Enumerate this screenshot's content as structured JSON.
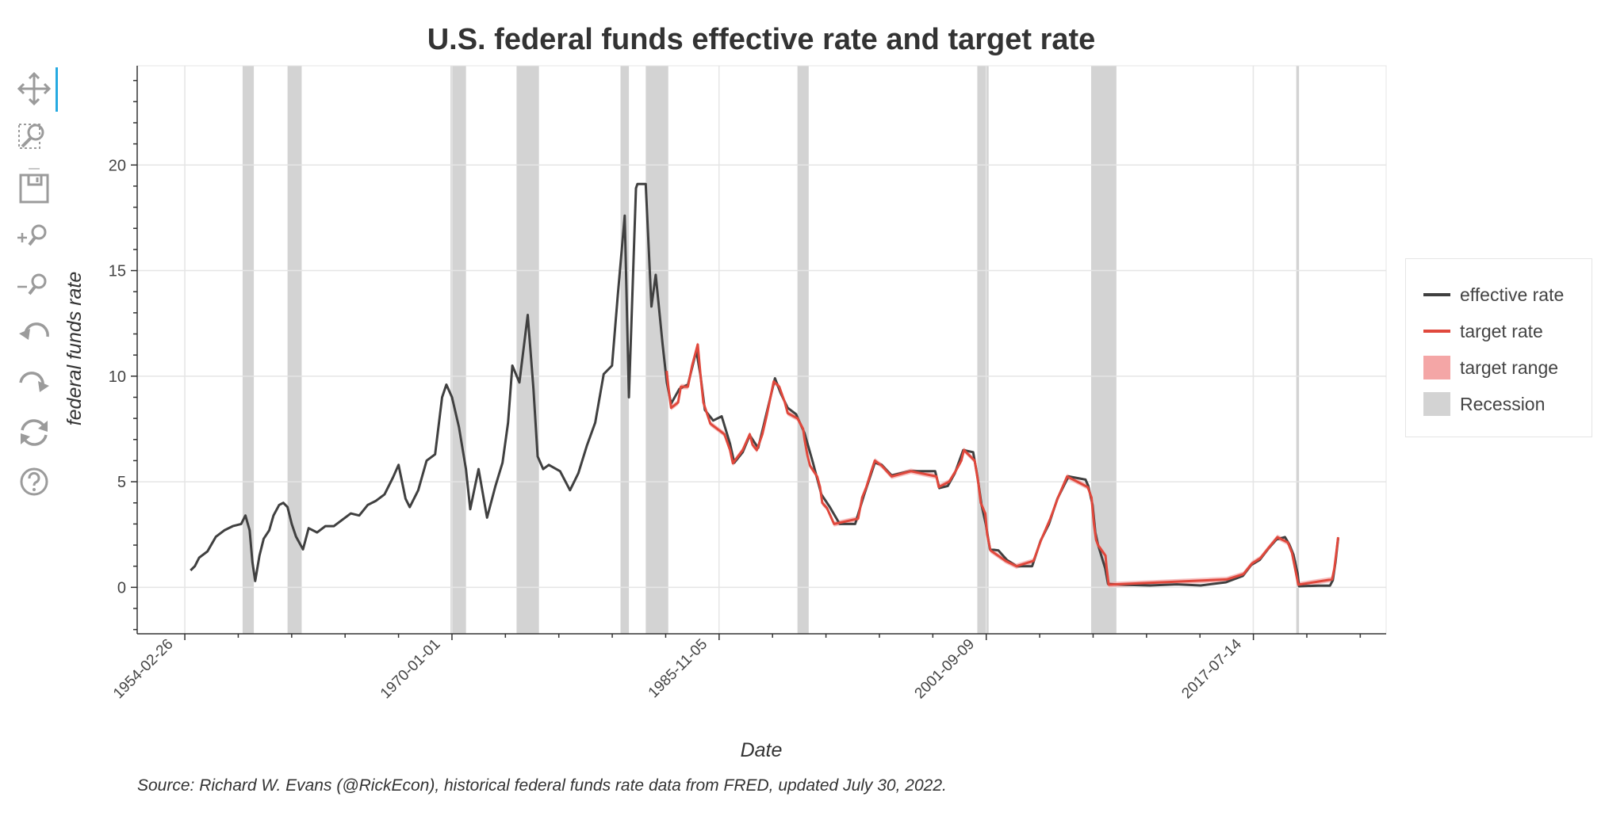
{
  "toolbar": {
    "tools": [
      {
        "name": "pan-tool",
        "icon": "pan-icon",
        "active": true
      },
      {
        "name": "box-zoom-tool",
        "icon": "box-zoom-icon",
        "active": false
      },
      {
        "name": "save-tool",
        "icon": "save-icon",
        "active": false
      },
      {
        "name": "zoom-in-tool",
        "icon": "zoom-in-icon",
        "active": false
      },
      {
        "name": "zoom-out-tool",
        "icon": "zoom-out-icon",
        "active": false
      },
      {
        "name": "undo-tool",
        "icon": "undo-icon",
        "active": false
      },
      {
        "name": "redo-tool",
        "icon": "redo-icon",
        "active": false
      },
      {
        "name": "reset-tool",
        "icon": "reset-icon",
        "active": false
      },
      {
        "name": "help-tool",
        "icon": "help-icon",
        "active": false
      }
    ]
  },
  "source_note": "Source: Richard W. Evans (@RickEcon), historical federal funds rate data from FRED, updated July 30, 2022.",
  "legend": {
    "items": [
      {
        "label": "effective rate",
        "kind": "line",
        "color": "#404040"
      },
      {
        "label": "target rate",
        "kind": "line",
        "color": "#e0483c"
      },
      {
        "label": "target range",
        "kind": "box",
        "color": "#f4a6a6"
      },
      {
        "label": "Recession",
        "kind": "box",
        "color": "#d3d3d3"
      }
    ]
  },
  "chart_data": {
    "type": "line",
    "title": "U.S. federal funds effective rate and target rate",
    "xlabel": "Date",
    "ylabel": "federal funds rate",
    "xlim": [
      "1951-05-01",
      "2025-06-01"
    ],
    "ylim": [
      -2.2,
      24.7
    ],
    "x_tick_labels": [
      "1954-02-26",
      "1970-01-01",
      "1985-11-05",
      "2001-09-09",
      "2017-07-14"
    ],
    "y_ticks": [
      0,
      5,
      10,
      15,
      20
    ],
    "grid": true,
    "legend_position": "right",
    "colors": {
      "effective": "#404040",
      "target": "#e0483c",
      "target_range": "#f4a6a6",
      "recession": "#d3d3d3"
    },
    "recessions": [
      [
        "1957-08-01",
        "1958-04-01"
      ],
      [
        "1960-04-01",
        "1961-02-01"
      ],
      [
        "1969-12-01",
        "1970-11-01"
      ],
      [
        "1973-11-01",
        "1975-03-01"
      ],
      [
        "1980-01-01",
        "1980-07-01"
      ],
      [
        "1981-07-01",
        "1982-11-01"
      ],
      [
        "1990-07-01",
        "1991-03-01"
      ],
      [
        "2001-03-01",
        "2001-11-01"
      ],
      [
        "2007-12-01",
        "2009-06-01"
      ],
      [
        "2020-02-01",
        "2020-04-01"
      ]
    ],
    "series": [
      {
        "name": "effective rate",
        "points": [
          [
            "1954-07-01",
            0.8
          ],
          [
            "1954-10-01",
            1.0
          ],
          [
            "1955-01-01",
            1.4
          ],
          [
            "1955-07-01",
            1.7
          ],
          [
            "1956-01-01",
            2.4
          ],
          [
            "1956-07-01",
            2.7
          ],
          [
            "1957-01-01",
            2.9
          ],
          [
            "1957-07-01",
            3.0
          ],
          [
            "1957-10-01",
            3.4
          ],
          [
            "1958-01-01",
            2.7
          ],
          [
            "1958-03-01",
            1.2
          ],
          [
            "1958-05-01",
            0.3
          ],
          [
            "1958-08-01",
            1.5
          ],
          [
            "1958-11-01",
            2.3
          ],
          [
            "1959-03-01",
            2.7
          ],
          [
            "1959-06-01",
            3.4
          ],
          [
            "1959-10-01",
            3.9
          ],
          [
            "1960-01-01",
            4.0
          ],
          [
            "1960-04-01",
            3.8
          ],
          [
            "1960-07-01",
            3.0
          ],
          [
            "1960-10-01",
            2.4
          ],
          [
            "1961-03-01",
            1.8
          ],
          [
            "1961-07-01",
            2.8
          ],
          [
            "1962-01-01",
            2.6
          ],
          [
            "1962-07-01",
            2.9
          ],
          [
            "1963-01-01",
            2.9
          ],
          [
            "1963-07-01",
            3.2
          ],
          [
            "1964-01-01",
            3.5
          ],
          [
            "1964-07-01",
            3.4
          ],
          [
            "1965-01-01",
            3.9
          ],
          [
            "1965-07-01",
            4.1
          ],
          [
            "1966-01-01",
            4.4
          ],
          [
            "1966-07-01",
            5.2
          ],
          [
            "1966-11-01",
            5.8
          ],
          [
            "1967-04-01",
            4.2
          ],
          [
            "1967-07-01",
            3.8
          ],
          [
            "1968-01-01",
            4.6
          ],
          [
            "1968-07-01",
            6.0
          ],
          [
            "1969-01-01",
            6.3
          ],
          [
            "1969-06-01",
            9.0
          ],
          [
            "1969-09-01",
            9.6
          ],
          [
            "1970-01-01",
            9.0
          ],
          [
            "1970-06-01",
            7.6
          ],
          [
            "1970-11-01",
            5.6
          ],
          [
            "1971-02-01",
            3.7
          ],
          [
            "1971-08-01",
            5.6
          ],
          [
            "1972-02-01",
            3.3
          ],
          [
            "1972-08-01",
            4.8
          ],
          [
            "1973-01-01",
            5.9
          ],
          [
            "1973-05-01",
            7.8
          ],
          [
            "1973-08-01",
            10.5
          ],
          [
            "1974-01-01",
            9.7
          ],
          [
            "1974-07-01",
            12.9
          ],
          [
            "1974-11-01",
            9.4
          ],
          [
            "1975-02-01",
            6.2
          ],
          [
            "1975-06-01",
            5.6
          ],
          [
            "1975-10-01",
            5.8
          ],
          [
            "1976-06-01",
            5.5
          ],
          [
            "1977-01-01",
            4.6
          ],
          [
            "1977-07-01",
            5.4
          ],
          [
            "1978-01-01",
            6.7
          ],
          [
            "1978-07-01",
            7.8
          ],
          [
            "1979-01-01",
            10.1
          ],
          [
            "1979-07-01",
            10.5
          ],
          [
            "1979-11-01",
            13.8
          ],
          [
            "1980-04-01",
            17.6
          ],
          [
            "1980-07-01",
            9.0
          ],
          [
            "1980-12-01",
            18.9
          ],
          [
            "1981-01-01",
            19.1
          ],
          [
            "1981-07-01",
            19.1
          ],
          [
            "1981-11-01",
            13.3
          ],
          [
            "1982-02-01",
            14.8
          ],
          [
            "1982-07-01",
            11.5
          ],
          [
            "1982-10-01",
            9.7
          ],
          [
            "1983-01-01",
            8.7
          ],
          [
            "1983-07-01",
            9.4
          ],
          [
            "1984-01-01",
            9.6
          ],
          [
            "1984-07-01",
            11.2
          ],
          [
            "1984-10-01",
            10.0
          ],
          [
            "1985-01-01",
            8.4
          ],
          [
            "1985-07-01",
            7.9
          ],
          [
            "1986-01-01",
            8.1
          ],
          [
            "1986-07-01",
            6.8
          ],
          [
            "1986-10-01",
            5.9
          ],
          [
            "1987-04-01",
            6.4
          ],
          [
            "1987-09-01",
            7.2
          ],
          [
            "1988-03-01",
            6.6
          ],
          [
            "1988-07-01",
            7.7
          ],
          [
            "1989-03-01",
            9.9
          ],
          [
            "1989-07-01",
            9.2
          ],
          [
            "1989-12-01",
            8.5
          ],
          [
            "1990-06-01",
            8.2
          ],
          [
            "1990-12-01",
            7.3
          ],
          [
            "1991-06-01",
            5.9
          ],
          [
            "1991-12-01",
            4.4
          ],
          [
            "1992-06-01",
            3.8
          ],
          [
            "1993-01-01",
            3.0
          ],
          [
            "1993-12-01",
            3.0
          ],
          [
            "1994-06-01",
            4.3
          ],
          [
            "1995-02-01",
            5.9
          ],
          [
            "1995-07-01",
            5.8
          ],
          [
            "1996-02-01",
            5.3
          ],
          [
            "1997-03-01",
            5.5
          ],
          [
            "1998-09-01",
            5.5
          ],
          [
            "1998-12-01",
            4.7
          ],
          [
            "1999-06-01",
            4.8
          ],
          [
            "1999-11-01",
            5.4
          ],
          [
            "2000-05-01",
            6.5
          ],
          [
            "2000-12-01",
            6.4
          ],
          [
            "2001-03-01",
            5.3
          ],
          [
            "2001-06-01",
            3.9
          ],
          [
            "2001-09-01",
            3.0
          ],
          [
            "2001-12-01",
            1.8
          ],
          [
            "2002-06-01",
            1.75
          ],
          [
            "2002-12-01",
            1.3
          ],
          [
            "2003-07-01",
            1.0
          ],
          [
            "2004-06-01",
            1.0
          ],
          [
            "2004-12-01",
            2.2
          ],
          [
            "2005-06-01",
            3.0
          ],
          [
            "2005-12-01",
            4.2
          ],
          [
            "2006-06-01",
            5.0
          ],
          [
            "2006-08-01",
            5.25
          ],
          [
            "2007-08-01",
            5.1
          ],
          [
            "2007-10-01",
            4.8
          ],
          [
            "2008-01-01",
            3.9
          ],
          [
            "2008-03-01",
            2.6
          ],
          [
            "2008-05-01",
            2.0
          ],
          [
            "2008-10-01",
            0.9
          ],
          [
            "2008-12-01",
            0.16
          ],
          [
            "2010-01-01",
            0.12
          ],
          [
            "2011-06-01",
            0.09
          ],
          [
            "2013-01-01",
            0.14
          ],
          [
            "2014-06-01",
            0.09
          ],
          [
            "2015-12-01",
            0.24
          ],
          [
            "2016-12-01",
            0.54
          ],
          [
            "2017-06-01",
            1.06
          ],
          [
            "2017-12-01",
            1.3
          ],
          [
            "2018-06-01",
            1.82
          ],
          [
            "2018-12-01",
            2.27
          ],
          [
            "2019-06-01",
            2.38
          ],
          [
            "2019-09-01",
            2.04
          ],
          [
            "2019-12-01",
            1.55
          ],
          [
            "2020-03-01",
            0.65
          ],
          [
            "2020-04-01",
            0.05
          ],
          [
            "2021-06-01",
            0.08
          ],
          [
            "2022-02-01",
            0.08
          ],
          [
            "2022-04-01",
            0.33
          ],
          [
            "2022-06-01",
            1.21
          ],
          [
            "2022-07-28",
            2.33
          ]
        ]
      },
      {
        "name": "target rate",
        "points": [
          [
            "1982-09-27",
            10.25
          ],
          [
            "1982-11-01",
            9.5
          ],
          [
            "1983-01-01",
            8.5
          ],
          [
            "1983-06-01",
            8.75
          ],
          [
            "1983-08-01",
            9.5
          ],
          [
            "1984-01-01",
            9.5
          ],
          [
            "1984-04-01",
            10.5
          ],
          [
            "1984-08-01",
            11.5
          ],
          [
            "1984-10-01",
            10.0
          ],
          [
            "1984-12-01",
            8.75
          ],
          [
            "1985-05-01",
            7.75
          ],
          [
            "1986-03-01",
            7.25
          ],
          [
            "1986-07-01",
            6.5
          ],
          [
            "1986-09-01",
            5.875
          ],
          [
            "1987-04-01",
            6.5
          ],
          [
            "1987-09-01",
            7.25
          ],
          [
            "1987-11-01",
            6.75
          ],
          [
            "1988-02-01",
            6.5
          ],
          [
            "1988-06-01",
            7.25
          ],
          [
            "1988-09-01",
            8.125
          ],
          [
            "1989-02-01",
            9.75
          ],
          [
            "1989-06-01",
            9.5
          ],
          [
            "1989-10-01",
            8.75
          ],
          [
            "1989-12-01",
            8.25
          ],
          [
            "1990-07-01",
            8.0
          ],
          [
            "1990-11-01",
            7.5
          ],
          [
            "1990-12-01",
            7.0
          ],
          [
            "1991-02-01",
            6.25
          ],
          [
            "1991-04-01",
            5.75
          ],
          [
            "1991-09-01",
            5.25
          ],
          [
            "1991-11-01",
            4.75
          ],
          [
            "1991-12-20",
            4.0
          ],
          [
            "1992-04-01",
            3.75
          ],
          [
            "1992-09-01",
            3.0
          ],
          [
            "1994-02-04",
            3.25
          ],
          [
            "1994-05-01",
            4.25
          ],
          [
            "1994-08-01",
            4.75
          ],
          [
            "1994-11-15",
            5.5
          ],
          [
            "1995-02-01",
            6.0
          ],
          [
            "1995-07-06",
            5.75
          ],
          [
            "1996-01-31",
            5.25
          ],
          [
            "1997-03-25",
            5.5
          ],
          [
            "1998-09-29",
            5.25
          ],
          [
            "1998-11-17",
            4.75
          ],
          [
            "1999-06-30",
            5.0
          ],
          [
            "1999-11-16",
            5.5
          ],
          [
            "2000-03-21",
            6.0
          ],
          [
            "2000-05-16",
            6.5
          ],
          [
            "2001-01-03",
            6.0
          ],
          [
            "2001-03-20",
            5.0
          ],
          [
            "2001-05-15",
            4.0
          ],
          [
            "2001-08-21",
            3.5
          ],
          [
            "2001-10-02",
            2.5
          ],
          [
            "2001-12-11",
            1.75
          ],
          [
            "2002-11-06",
            1.25
          ],
          [
            "2003-06-25",
            1.0
          ],
          [
            "2004-06-30",
            1.25
          ],
          [
            "2004-12-14",
            2.25
          ],
          [
            "2005-06-30",
            3.25
          ],
          [
            "2005-12-13",
            4.25
          ],
          [
            "2006-06-29",
            5.25
          ],
          [
            "2007-09-18",
            4.75
          ],
          [
            "2007-12-11",
            4.25
          ],
          [
            "2008-01-30",
            3.0
          ],
          [
            "2008-03-18",
            2.25
          ],
          [
            "2008-04-30",
            2.0
          ],
          [
            "2008-10-08",
            1.5
          ],
          [
            "2008-10-29",
            1.0
          ],
          [
            "2008-12-16",
            0.125
          ],
          [
            "2015-12-17",
            0.375
          ],
          [
            "2016-12-15",
            0.625
          ],
          [
            "2017-06-15",
            1.125
          ],
          [
            "2017-12-14",
            1.375
          ],
          [
            "2018-06-14",
            1.875
          ],
          [
            "2018-12-20",
            2.375
          ],
          [
            "2019-08-01",
            2.125
          ],
          [
            "2019-10-31",
            1.625
          ],
          [
            "2020-03-16",
            0.125
          ],
          [
            "2022-03-17",
            0.375
          ],
          [
            "2022-05-05",
            0.875
          ],
          [
            "2022-06-16",
            1.625
          ],
          [
            "2022-07-28",
            2.375
          ]
        ]
      }
    ]
  }
}
